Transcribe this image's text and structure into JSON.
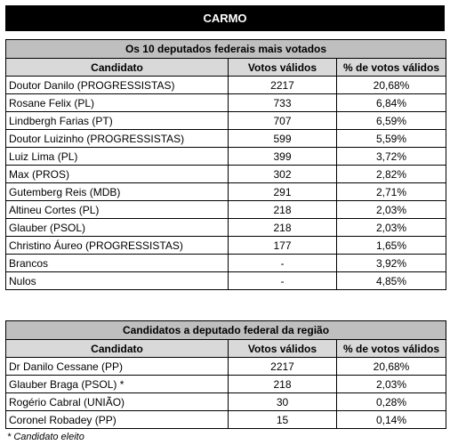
{
  "title": "CARMO",
  "tables": [
    {
      "title": "Os 10 deputados federais mais votados",
      "columns": [
        "Candidato",
        "Votos válidos",
        "% de votos válidos"
      ],
      "rows": [
        [
          "Doutor Danilo (PROGRESSISTAS)",
          "2217",
          "20,68%"
        ],
        [
          "Rosane Felix (PL)",
          "733",
          "6,84%"
        ],
        [
          "Lindbergh Farias (PT)",
          "707",
          "6,59%"
        ],
        [
          "Doutor Luizinho (PROGRESSISTAS)",
          "599",
          "5,59%"
        ],
        [
          "Luiz Lima (PL)",
          "399",
          "3,72%"
        ],
        [
          "Max (PROS)",
          "302",
          "2,82%"
        ],
        [
          "Gutemberg Reis (MDB)",
          "291",
          "2,71%"
        ],
        [
          "Altineu Cortes (PL)",
          "218",
          "2,03%"
        ],
        [
          "Glauber (PSOL)",
          "218",
          "2,03%"
        ],
        [
          "Christino Áureo (PROGRESSISTAS)",
          "177",
          "1,65%"
        ],
        [
          "Brancos",
          "-",
          "3,92%"
        ],
        [
          "Nulos",
          "-",
          "4,85%"
        ]
      ]
    },
    {
      "title": "Candidatos a deputado federal da região",
      "columns": [
        "Candidato",
        "Votos válidos",
        "% de votos válidos"
      ],
      "rows": [
        [
          "Dr Danilo Cessane (PP)",
          "2217",
          "20,68%"
        ],
        [
          "Glauber Braga (PSOL) *",
          "218",
          "2,03%"
        ],
        [
          "Rogério Cabral (UNIÃO)",
          "30",
          "0,28%"
        ],
        [
          "Coronel Robadey (PP)",
          "15",
          "0,14%"
        ]
      ]
    }
  ],
  "footnote": "* Candidato eleito"
}
